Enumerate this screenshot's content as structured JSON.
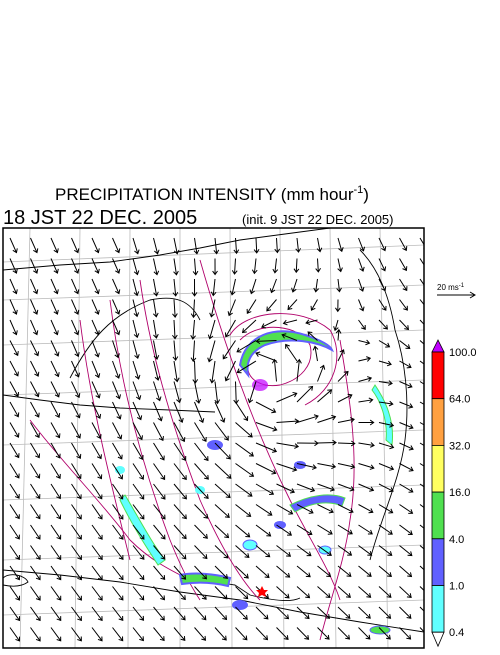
{
  "header": {
    "title": "PRECIPITATION INTENSITY (mm hour",
    "title_superscript": "-1",
    "title_end": ")",
    "valid_time": "18 JST 22 DEC. 2005",
    "init_time": "(init. 9 JST 22 DEC. 2005)"
  },
  "wind_reference": {
    "label": "20 ms",
    "superscript": "-1"
  },
  "colorbar": {
    "levels": [
      {
        "value": 100,
        "label": "100.0"
      },
      {
        "value": 64,
        "label": "64.0"
      },
      {
        "value": 32,
        "label": "32.0"
      },
      {
        "value": 16,
        "label": "16.0"
      },
      {
        "value": 4,
        "label": "4.0"
      },
      {
        "value": 1,
        "label": "1.0"
      },
      {
        "value": 0.4,
        "label": "0.4"
      }
    ],
    "colors": [
      "#c000ff",
      "#ff0000",
      "#ffa040",
      "#ffff60",
      "#50e050",
      "#6060ff",
      "#60ffff",
      "#ffffff"
    ]
  }
}
